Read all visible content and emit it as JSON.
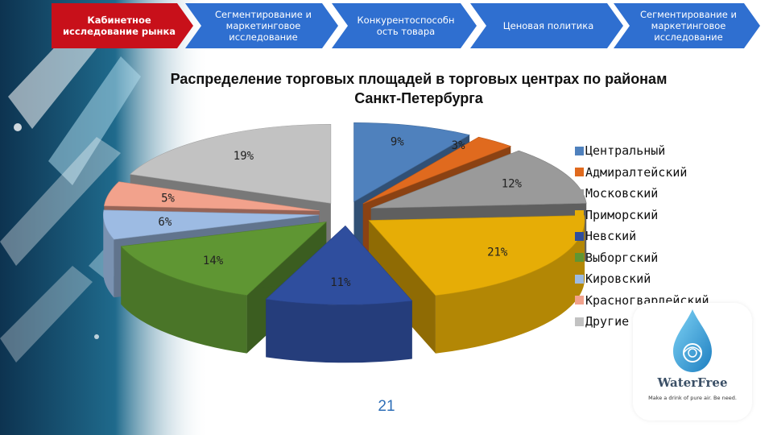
{
  "nav": {
    "items": [
      {
        "label": "Кабинетное исследование рынка",
        "color": "#c8101a"
      },
      {
        "label": "Сегментирование и маркетинговое исследование",
        "color": "#2f6fd0"
      },
      {
        "label": "Конкурентоспособн ость товара",
        "color": "#2f6fd0"
      },
      {
        "label": "Ценовая политика",
        "color": "#2f6fd0"
      },
      {
        "label": "Сегментирование и маркетинговое исследование",
        "color": "#2f6fd0"
      }
    ]
  },
  "chart_data": {
    "type": "pie",
    "title": "Распределение торговых площадей в торговых центрах по районам Санкт-Петербурга",
    "series": [
      {
        "name": "Центральный",
        "value": 9,
        "label": "9%",
        "color": "#4f81bd"
      },
      {
        "name": "Адмиралтейский",
        "value": 3,
        "label": "3%",
        "color": "#e06a1e"
      },
      {
        "name": "Московский",
        "value": 12,
        "label": "12%",
        "color": "#9a9a9a"
      },
      {
        "name": "Приморский",
        "value": 21,
        "label": "21%",
        "color": "#e6ad06"
      },
      {
        "name": "Невский",
        "value": 11,
        "label": "11%",
        "color": "#2f4e9e"
      },
      {
        "name": "Выборгский",
        "value": 14,
        "label": "14%",
        "color": "#5f9633"
      },
      {
        "name": "Кировский",
        "value": 6,
        "label": "6%",
        "color": "#9dbbe3"
      },
      {
        "name": "Красногвардейский",
        "value": 5,
        "label": "5%",
        "color": "#f2a28c"
      },
      {
        "name": "Другие районы",
        "value": 19,
        "label": "19%",
        "color": "#c2c2c2"
      }
    ],
    "legend_position": "right"
  },
  "page_number": "21",
  "logo": {
    "wordmark": "WaterFree",
    "tagline": "Make a drink of pure air. Be need."
  }
}
